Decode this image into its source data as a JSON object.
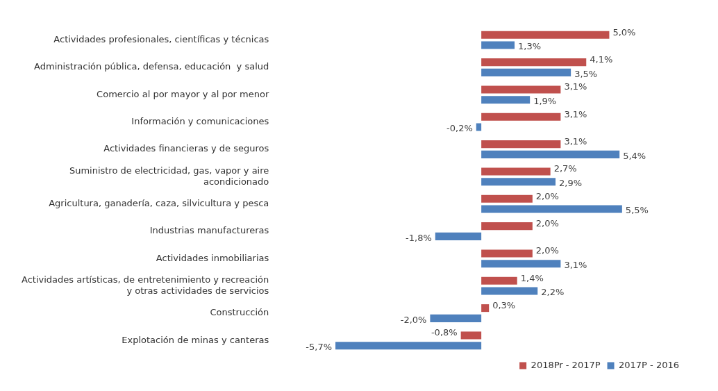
{
  "chart_data": {
    "type": "bar",
    "orientation": "horizontal",
    "legend": "bottom",
    "categories": [
      "Actividades profesionales, científicas y técnicas",
      "Administración pública, defensa, educación  y salud",
      "Comercio al por mayor y al por menor",
      "Información y comunicaciones",
      "Actividades financieras y de seguros",
      "Suministro de electricidad, gas, vapor y aire acondicionado",
      "Agricultura, ganadería, caza, silvicultura y pesca",
      "Industrias manufactureras",
      "Actividades inmobiliarias",
      "Actividades artísticas, de entretenimiento y recreación y otras actividades de servicios",
      "Construcción",
      "Explotación de minas y canteras"
    ],
    "series": [
      {
        "name": "2018Pr - 2017P",
        "color": "#c0504d",
        "values": [
          5.0,
          4.1,
          3.1,
          3.1,
          3.1,
          2.7,
          2.0,
          2.0,
          2.0,
          1.4,
          0.3,
          -0.8
        ],
        "value_labels": [
          "5,0%",
          "4,1%",
          "3,1%",
          "3,1%",
          "3,1%",
          "2,7%",
          "2,0%",
          "2,0%",
          "2,0%",
          "1,4%",
          "0,3%",
          "-0,8%"
        ]
      },
      {
        "name": "2017P - 2016",
        "color": "#4f81bd",
        "values": [
          1.3,
          3.5,
          1.9,
          -0.2,
          5.4,
          2.9,
          5.5,
          -1.8,
          3.1,
          2.2,
          -2.0,
          -5.7
        ],
        "value_labels": [
          "1,3%",
          "3,5%",
          "1,9%",
          "-0,2%",
          "5,4%",
          "2,9%",
          "5,5%",
          "-1,8%",
          "3,1%",
          "2,2%",
          "-2,0%",
          "-5,7%"
        ]
      }
    ]
  }
}
